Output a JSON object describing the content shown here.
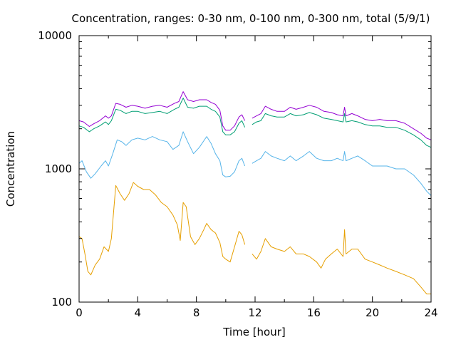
{
  "chart_data": {
    "type": "line",
    "title": "Concentration, ranges: 0-30 nm, 0-100 nm, 0-300 nm, total (5/9/1)",
    "xlabel": "Time [hour]",
    "ylabel": "Concentration",
    "xlim": [
      0,
      24
    ],
    "ylim": [
      100,
      10000
    ],
    "yscale": "log",
    "grid": false,
    "legend": "none",
    "x_ticks": [
      "0",
      "4",
      "8",
      "12",
      "16",
      "20",
      "24"
    ],
    "y_ticks": [
      "100",
      "1000",
      "10000"
    ],
    "series": [
      {
        "color": "#9400d3",
        "segments": [
          [
            [
              0,
              2300
            ],
            [
              0.3,
              2250
            ],
            [
              0.7,
              2080
            ],
            [
              1.0,
              2180
            ],
            [
              1.4,
              2300
            ],
            [
              1.8,
              2500
            ],
            [
              2.0,
              2400
            ],
            [
              2.2,
              2500
            ],
            [
              2.5,
              3100
            ],
            [
              2.8,
              3050
            ],
            [
              3.2,
              2900
            ],
            [
              3.6,
              3000
            ],
            [
              4.0,
              2950
            ],
            [
              4.5,
              2850
            ],
            [
              5.0,
              2950
            ],
            [
              5.5,
              3000
            ],
            [
              6.0,
              2900
            ],
            [
              6.5,
              3100
            ],
            [
              6.8,
              3200
            ],
            [
              7.1,
              3800
            ],
            [
              7.4,
              3300
            ],
            [
              7.8,
              3200
            ],
            [
              8.2,
              3300
            ],
            [
              8.7,
              3300
            ],
            [
              9.0,
              3150
            ],
            [
              9.3,
              3050
            ],
            [
              9.6,
              2750
            ],
            [
              9.8,
              2100
            ],
            [
              10.0,
              1950
            ],
            [
              10.3,
              1950
            ],
            [
              10.6,
              2100
            ],
            [
              10.9,
              2450
            ],
            [
              11.1,
              2550
            ],
            [
              11.3,
              2300
            ]
          ],
          [
            [
              11.8,
              2400
            ],
            [
              12.1,
              2500
            ],
            [
              12.4,
              2600
            ],
            [
              12.7,
              2950
            ],
            [
              13.1,
              2800
            ],
            [
              13.5,
              2700
            ],
            [
              14.0,
              2700
            ],
            [
              14.4,
              2900
            ],
            [
              14.8,
              2800
            ],
            [
              15.3,
              2900
            ],
            [
              15.7,
              3000
            ],
            [
              16.2,
              2900
            ],
            [
              16.7,
              2700
            ],
            [
              17.2,
              2650
            ],
            [
              17.6,
              2550
            ],
            [
              18.0,
              2500
            ],
            [
              18.1,
              2900
            ],
            [
              18.2,
              2500
            ],
            [
              18.6,
              2600
            ],
            [
              19.0,
              2500
            ],
            [
              19.5,
              2350
            ],
            [
              20.0,
              2300
            ],
            [
              20.5,
              2350
            ],
            [
              21.0,
              2300
            ],
            [
              21.6,
              2300
            ],
            [
              22.2,
              2200
            ],
            [
              22.8,
              2000
            ],
            [
              23.3,
              1850
            ],
            [
              23.7,
              1700
            ],
            [
              24.0,
              1650
            ]
          ]
        ]
      },
      {
        "color": "#009e73",
        "segments": [
          [
            [
              0,
              2100
            ],
            [
              0.3,
              2050
            ],
            [
              0.7,
              1900
            ],
            [
              1.0,
              2000
            ],
            [
              1.4,
              2100
            ],
            [
              1.8,
              2250
            ],
            [
              2.0,
              2150
            ],
            [
              2.2,
              2300
            ],
            [
              2.5,
              2800
            ],
            [
              2.8,
              2750
            ],
            [
              3.2,
              2600
            ],
            [
              3.6,
              2700
            ],
            [
              4.0,
              2700
            ],
            [
              4.5,
              2600
            ],
            [
              5.0,
              2650
            ],
            [
              5.5,
              2700
            ],
            [
              6.0,
              2600
            ],
            [
              6.5,
              2800
            ],
            [
              6.8,
              2900
            ],
            [
              7.1,
              3400
            ],
            [
              7.4,
              2900
            ],
            [
              7.8,
              2850
            ],
            [
              8.2,
              2950
            ],
            [
              8.7,
              2950
            ],
            [
              9.0,
              2800
            ],
            [
              9.3,
              2700
            ],
            [
              9.6,
              2450
            ],
            [
              9.8,
              1900
            ],
            [
              10.0,
              1800
            ],
            [
              10.3,
              1800
            ],
            [
              10.6,
              1900
            ],
            [
              10.9,
              2200
            ],
            [
              11.1,
              2300
            ],
            [
              11.3,
              2050
            ]
          ],
          [
            [
              11.8,
              2150
            ],
            [
              12.1,
              2250
            ],
            [
              12.4,
              2300
            ],
            [
              12.7,
              2600
            ],
            [
              13.1,
              2500
            ],
            [
              13.5,
              2450
            ],
            [
              14.0,
              2450
            ],
            [
              14.4,
              2600
            ],
            [
              14.8,
              2500
            ],
            [
              15.3,
              2550
            ],
            [
              15.7,
              2650
            ],
            [
              16.2,
              2550
            ],
            [
              16.7,
              2400
            ],
            [
              17.2,
              2350
            ],
            [
              17.6,
              2300
            ],
            [
              18.0,
              2250
            ],
            [
              18.1,
              2600
            ],
            [
              18.2,
              2250
            ],
            [
              18.6,
              2300
            ],
            [
              19.0,
              2250
            ],
            [
              19.5,
              2150
            ],
            [
              20.0,
              2100
            ],
            [
              20.5,
              2100
            ],
            [
              21.0,
              2050
            ],
            [
              21.6,
              2050
            ],
            [
              22.2,
              1950
            ],
            [
              22.8,
              1800
            ],
            [
              23.3,
              1650
            ],
            [
              23.7,
              1500
            ],
            [
              24.0,
              1450
            ]
          ]
        ]
      },
      {
        "color": "#56b4e9",
        "segments": [
          [
            [
              0,
              1100
            ],
            [
              0.2,
              1150
            ],
            [
              0.5,
              950
            ],
            [
              0.8,
              850
            ],
            [
              1.1,
              920
            ],
            [
              1.5,
              1050
            ],
            [
              1.8,
              1150
            ],
            [
              2.0,
              1050
            ],
            [
              2.3,
              1300
            ],
            [
              2.6,
              1650
            ],
            [
              2.9,
              1600
            ],
            [
              3.2,
              1500
            ],
            [
              3.6,
              1650
            ],
            [
              4.0,
              1700
            ],
            [
              4.5,
              1650
            ],
            [
              5.0,
              1750
            ],
            [
              5.5,
              1650
            ],
            [
              6.0,
              1600
            ],
            [
              6.4,
              1400
            ],
            [
              6.8,
              1500
            ],
            [
              7.1,
              1900
            ],
            [
              7.4,
              1600
            ],
            [
              7.8,
              1300
            ],
            [
              8.2,
              1450
            ],
            [
              8.7,
              1750
            ],
            [
              9.0,
              1550
            ],
            [
              9.3,
              1300
            ],
            [
              9.6,
              1150
            ],
            [
              9.8,
              900
            ],
            [
              10.0,
              870
            ],
            [
              10.3,
              880
            ],
            [
              10.6,
              950
            ],
            [
              10.9,
              1150
            ],
            [
              11.1,
              1200
            ],
            [
              11.3,
              1050
            ]
          ],
          [
            [
              11.8,
              1100
            ],
            [
              12.1,
              1150
            ],
            [
              12.4,
              1200
            ],
            [
              12.7,
              1350
            ],
            [
              13.1,
              1250
            ],
            [
              13.5,
              1200
            ],
            [
              14.0,
              1150
            ],
            [
              14.4,
              1250
            ],
            [
              14.8,
              1150
            ],
            [
              15.3,
              1250
            ],
            [
              15.7,
              1350
            ],
            [
              16.2,
              1200
            ],
            [
              16.7,
              1150
            ],
            [
              17.2,
              1150
            ],
            [
              17.6,
              1200
            ],
            [
              18.0,
              1150
            ],
            [
              18.1,
              1350
            ],
            [
              18.2,
              1150
            ],
            [
              18.6,
              1200
            ],
            [
              19.0,
              1250
            ],
            [
              19.5,
              1150
            ],
            [
              20.0,
              1050
            ],
            [
              20.5,
              1050
            ],
            [
              21.0,
              1050
            ],
            [
              21.6,
              1000
            ],
            [
              22.2,
              1000
            ],
            [
              22.8,
              900
            ],
            [
              23.3,
              780
            ],
            [
              23.7,
              680
            ],
            [
              24.0,
              630
            ]
          ]
        ]
      },
      {
        "color": "#e69f00",
        "segments": [
          [
            [
              0,
              310
            ],
            [
              0.2,
              300
            ],
            [
              0.4,
              230
            ],
            [
              0.6,
              170
            ],
            [
              0.8,
              160
            ],
            [
              1.1,
              190
            ],
            [
              1.4,
              210
            ],
            [
              1.7,
              260
            ],
            [
              2.0,
              240
            ],
            [
              2.2,
              300
            ],
            [
              2.5,
              750
            ],
            [
              2.8,
              650
            ],
            [
              3.1,
              580
            ],
            [
              3.4,
              650
            ],
            [
              3.7,
              790
            ],
            [
              4.0,
              740
            ],
            [
              4.4,
              700
            ],
            [
              4.8,
              700
            ],
            [
              5.2,
              640
            ],
            [
              5.6,
              560
            ],
            [
              6.0,
              520
            ],
            [
              6.4,
              450
            ],
            [
              6.7,
              380
            ],
            [
              6.9,
              290
            ],
            [
              7.1,
              560
            ],
            [
              7.3,
              520
            ],
            [
              7.6,
              310
            ],
            [
              7.9,
              270
            ],
            [
              8.2,
              300
            ],
            [
              8.5,
              350
            ],
            [
              8.7,
              390
            ],
            [
              9.0,
              350
            ],
            [
              9.3,
              330
            ],
            [
              9.6,
              280
            ],
            [
              9.8,
              220
            ],
            [
              10.0,
              210
            ],
            [
              10.3,
              200
            ],
            [
              10.6,
              260
            ],
            [
              10.9,
              340
            ],
            [
              11.1,
              320
            ],
            [
              11.3,
              270
            ]
          ],
          [
            [
              11.8,
              230
            ],
            [
              12.1,
              210
            ],
            [
              12.4,
              240
            ],
            [
              12.7,
              300
            ],
            [
              13.1,
              260
            ],
            [
              13.5,
              250
            ],
            [
              14.0,
              240
            ],
            [
              14.4,
              260
            ],
            [
              14.8,
              230
            ],
            [
              15.3,
              230
            ],
            [
              15.7,
              220
            ],
            [
              16.2,
              200
            ],
            [
              16.5,
              180
            ],
            [
              16.8,
              210
            ],
            [
              17.2,
              230
            ],
            [
              17.6,
              250
            ],
            [
              18.0,
              220
            ],
            [
              18.1,
              350
            ],
            [
              18.2,
              230
            ],
            [
              18.6,
              250
            ],
            [
              19.0,
              250
            ],
            [
              19.5,
              210
            ],
            [
              20.0,
              200
            ],
            [
              20.5,
              190
            ],
            [
              21.0,
              180
            ],
            [
              21.6,
              170
            ],
            [
              22.2,
              160
            ],
            [
              22.8,
              150
            ],
            [
              23.3,
              130
            ],
            [
              23.7,
              115
            ],
            [
              24.0,
              115
            ]
          ]
        ]
      }
    ]
  }
}
